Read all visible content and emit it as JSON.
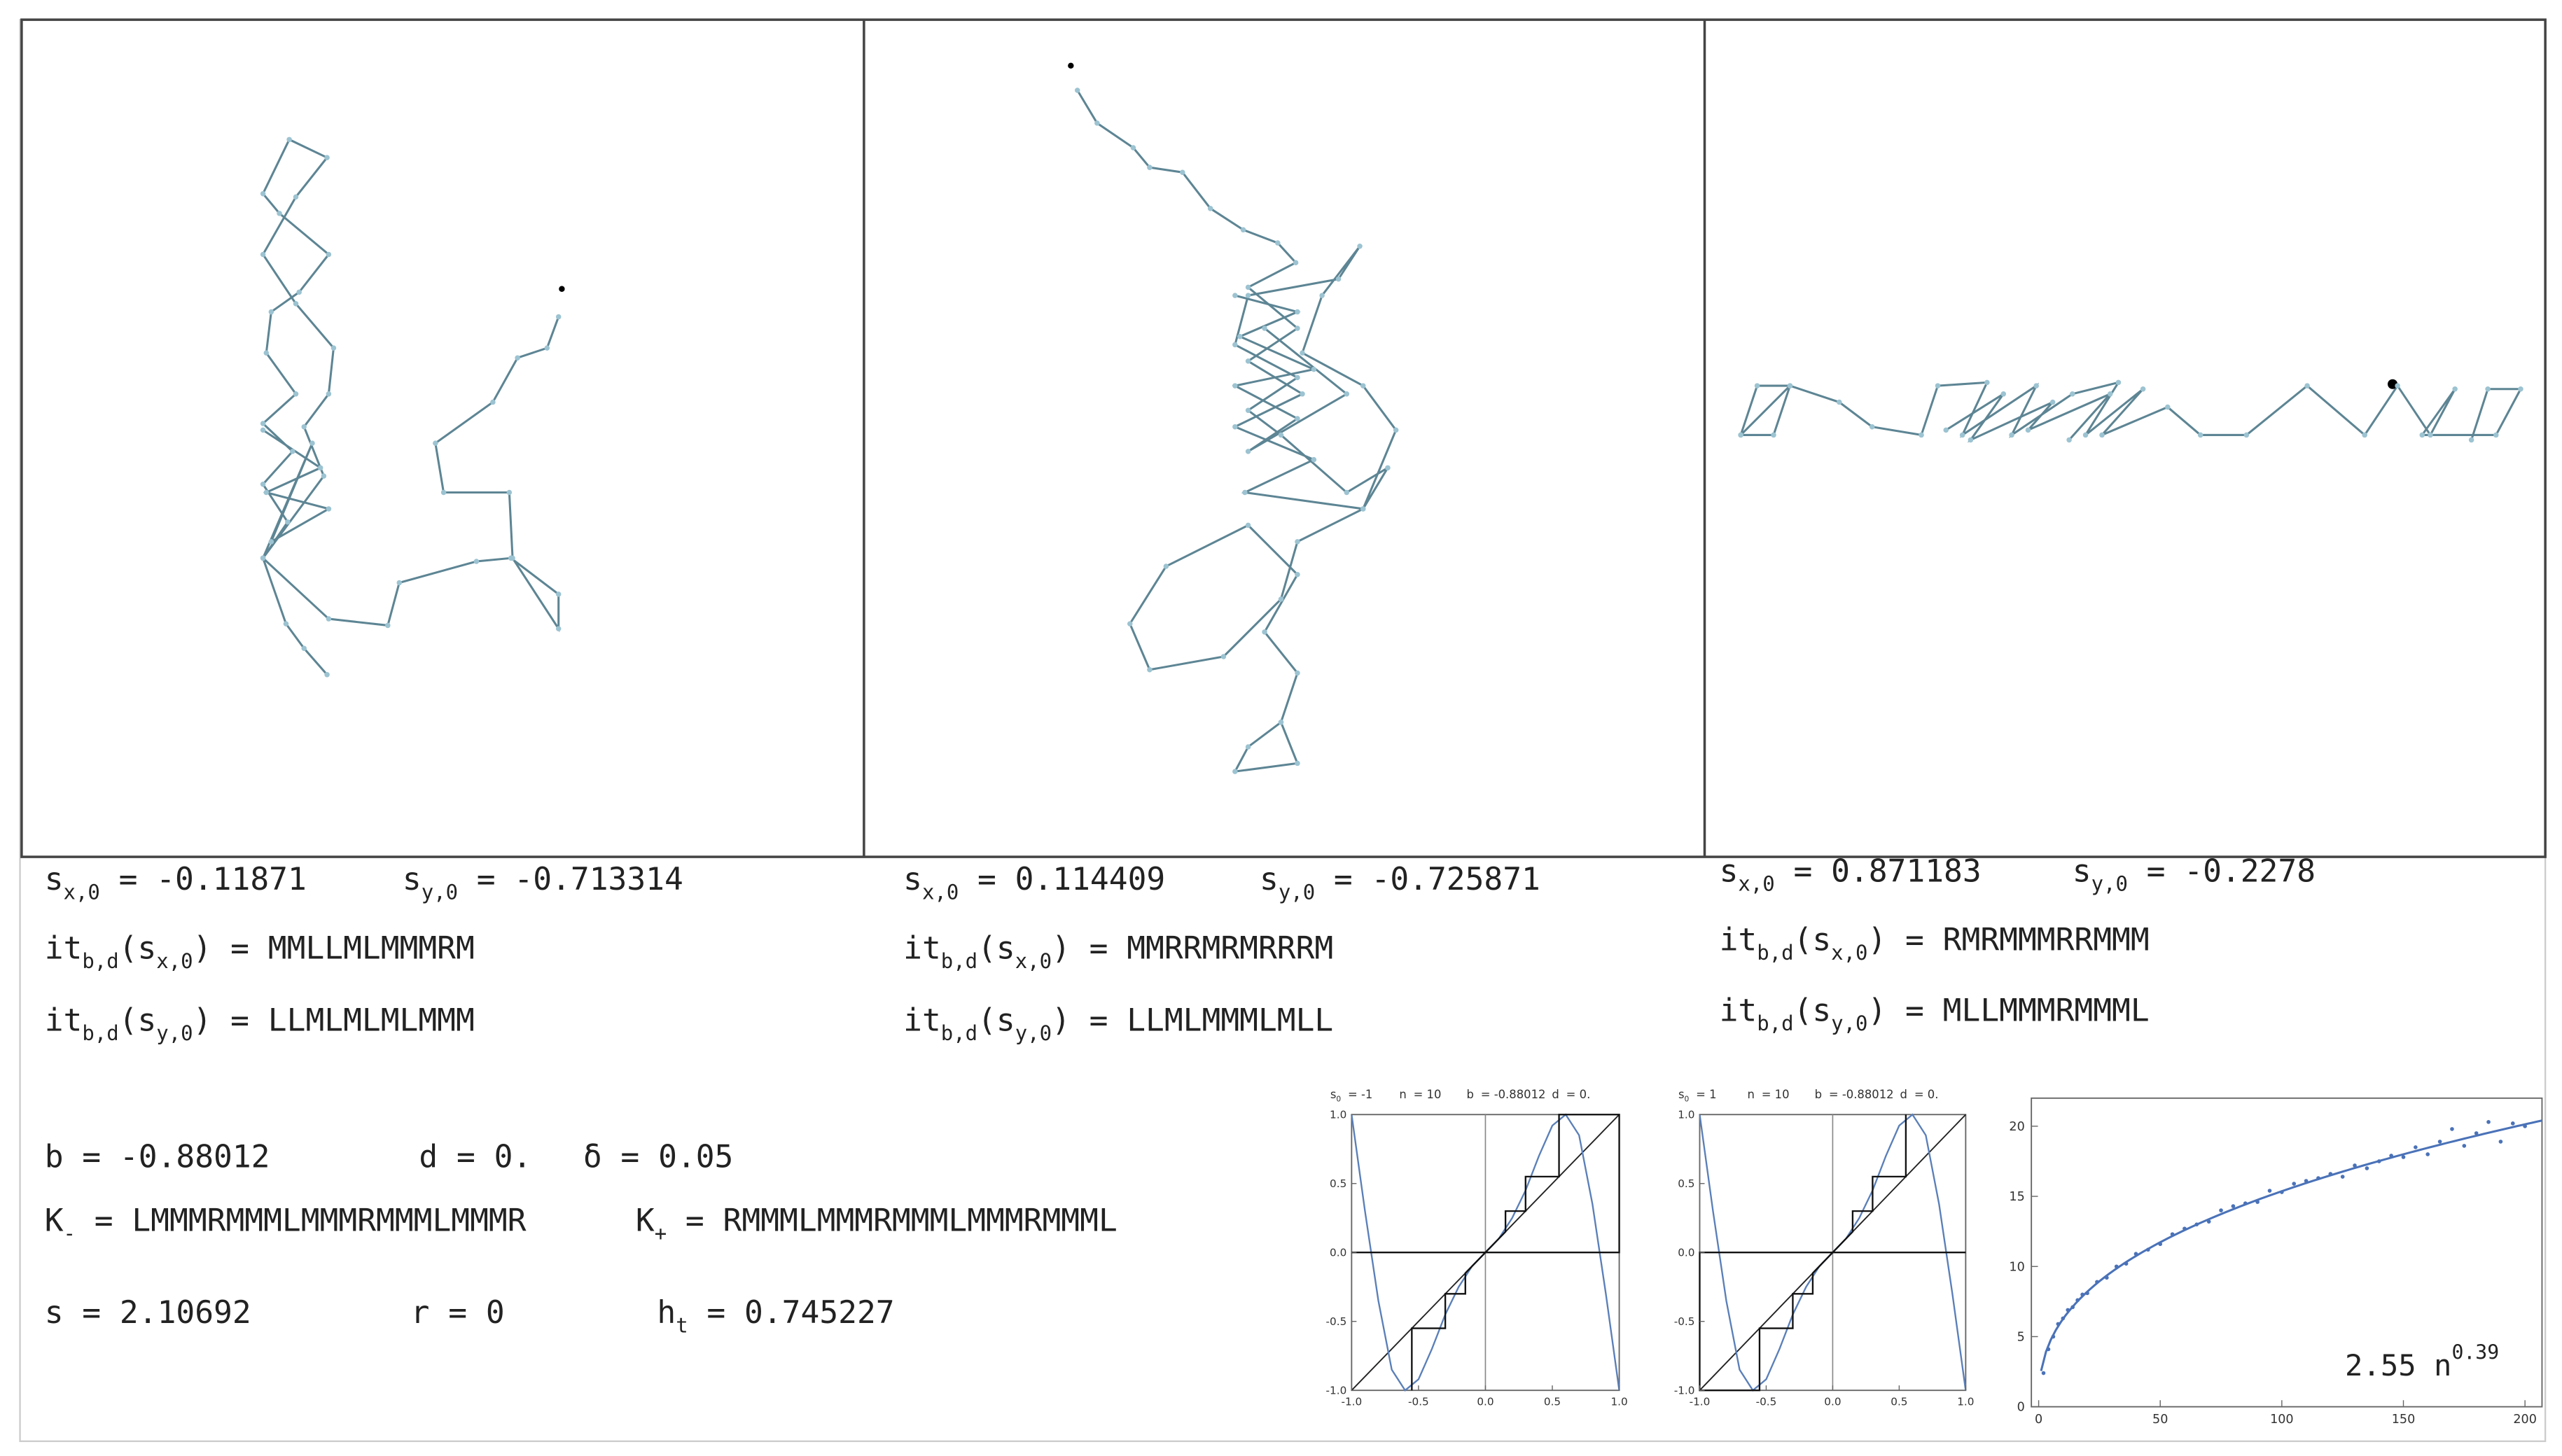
{
  "panels": [
    {
      "lines": [
        [
          {
            "lhs": [
              {
                "t": "s"
              },
              {
                "sub": "x,0"
              }
            ],
            "rhs": "= -0.11871"
          },
          {
            "lhs": [
              {
                "t": "s"
              },
              {
                "sub": "y,0"
              }
            ],
            "rhs": "= -0.713314"
          }
        ],
        [
          {
            "lhs": [
              {
                "t": "it"
              },
              {
                "sub": "b,d"
              },
              {
                "t": "(s"
              },
              {
                "sub": "x,0"
              },
              {
                "t": ")"
              }
            ],
            "rhs": "= MMLLMLMMMRM"
          }
        ],
        [
          {
            "lhs": [
              {
                "t": "it"
              },
              {
                "sub": "b,d"
              },
              {
                "t": "(s"
              },
              {
                "sub": "y,0"
              },
              {
                "t": ")"
              }
            ],
            "rhs": "= LLMLMLMLMMM"
          }
        ]
      ]
    },
    {
      "lines": [
        [
          {
            "lhs": [
              {
                "t": "s"
              },
              {
                "sub": "x,0"
              }
            ],
            "rhs": "= 0.114409"
          },
          {
            "lhs": [
              {
                "t": "s"
              },
              {
                "sub": "y,0"
              }
            ],
            "rhs": "= -0.725871"
          }
        ],
        [
          {
            "lhs": [
              {
                "t": "it"
              },
              {
                "sub": "b,d"
              },
              {
                "t": "(s"
              },
              {
                "sub": "x,0"
              },
              {
                "t": ")"
              }
            ],
            "rhs": "= MMRRMRMRRRM"
          }
        ],
        [
          {
            "lhs": [
              {
                "t": "it"
              },
              {
                "sub": "b,d"
              },
              {
                "t": "(s"
              },
              {
                "sub": "y,0"
              },
              {
                "t": ")"
              }
            ],
            "rhs": "= LLMLMMMLMLL"
          }
        ]
      ]
    },
    {
      "lines": [
        [
          {
            "lhs": [
              {
                "t": "s"
              },
              {
                "sub": "x,0"
              }
            ],
            "rhs": "= 0.871183"
          },
          {
            "lhs": [
              {
                "t": "s"
              },
              {
                "sub": "y,0"
              }
            ],
            "rhs": "= -0.2278"
          }
        ],
        [
          {
            "lhs": [
              {
                "t": "it"
              },
              {
                "sub": "b,d"
              },
              {
                "t": "(s"
              },
              {
                "sub": "x,0"
              },
              {
                "t": ")"
              }
            ],
            "rhs": "= RMRMMMRRMMM"
          }
        ],
        [
          {
            "lhs": [
              {
                "t": "it"
              },
              {
                "sub": "b,d"
              },
              {
                "t": "(s"
              },
              {
                "sub": "y,0"
              },
              {
                "t": ")"
              }
            ],
            "rhs": "= MLLMMMRMMML"
          }
        ]
      ]
    }
  ],
  "params": {
    "lines": [
      [
        {
          "lhs": [
            {
              "t": "b"
            }
          ],
          "rhs": "= -0.88012"
        },
        {
          "lhs": [
            {
              "t": "d"
            }
          ],
          "rhs": "= 0."
        },
        {
          "lhs": [
            {
              "t": "δ"
            }
          ],
          "rhs": "= 0.05"
        }
      ],
      [
        {
          "lhs": [
            {
              "t": "K"
            },
            {
              "sub": "-"
            }
          ],
          "rhs": "= LMMMRMMMLMMMRMMMLMMMR"
        },
        {
          "lhs": [
            {
              "t": "K"
            },
            {
              "sub": "+"
            }
          ],
          "rhs": "= RMMMLMMMRMMMLMMMRMMML"
        }
      ],
      [
        {
          "lhs": [
            {
              "t": "s"
            }
          ],
          "rhs": "= 2.10692"
        },
        {
          "lhs": [
            {
              "t": "r"
            }
          ],
          "rhs": "= 0"
        },
        {
          "lhs": [
            {
              "t": "h"
            },
            {
              "sub": "t"
            }
          ],
          "rhs": "= 0.745227"
        }
      ]
    ]
  },
  "cobwebs": [
    {
      "title": [
        {
          "lhs": [
            {
              "t": "s"
            },
            {
              "sub": "0"
            }
          ],
          "rhs": "= -1"
        },
        {
          "lhs": [
            {
              "t": "n"
            }
          ],
          "rhs": "= 10"
        },
        {
          "lhs": [
            {
              "t": "b"
            }
          ],
          "rhs": "= -0.88012"
        },
        {
          "lhs": [
            {
              "t": "d"
            }
          ],
          "rhs": "= 0."
        }
      ],
      "xlim": [
        -1,
        1
      ],
      "ylim": [
        -1,
        1
      ],
      "xticks": [
        {
          "value": -1,
          "label": "-1.0"
        },
        {
          "value": -0.5,
          "label": "-0.5"
        },
        {
          "value": 0,
          "label": "0.0"
        },
        {
          "value": 0.5,
          "label": "0.5"
        },
        {
          "value": 1,
          "label": "1.0"
        }
      ],
      "yticks": [
        {
          "value": -1,
          "label": "-1.0"
        },
        {
          "value": -0.5,
          "label": "-0.5"
        },
        {
          "value": 0,
          "label": "0.0"
        },
        {
          "value": 0.5,
          "label": "0.5"
        },
        {
          "value": 1,
          "label": "1.0"
        }
      ]
    },
    {
      "title": [
        {
          "lhs": [
            {
              "t": "s"
            },
            {
              "sub": "0"
            }
          ],
          "rhs": "= 1"
        },
        {
          "lhs": [
            {
              "t": "n"
            }
          ],
          "rhs": "= 10"
        },
        {
          "lhs": [
            {
              "t": "b"
            }
          ],
          "rhs": "= -0.88012"
        },
        {
          "lhs": [
            {
              "t": "d"
            }
          ],
          "rhs": "= 0."
        }
      ],
      "xlim": [
        -1,
        1
      ],
      "ylim": [
        -1,
        1
      ],
      "xticks": [
        {
          "value": -1,
          "label": "-1.0"
        },
        {
          "value": -0.5,
          "label": "-0.5"
        },
        {
          "value": 0,
          "label": "0.0"
        },
        {
          "value": 0.5,
          "label": "0.5"
        },
        {
          "value": 1,
          "label": "1.0"
        }
      ],
      "yticks": [
        {
          "value": -1,
          "label": "-1.0"
        },
        {
          "value": -0.5,
          "label": "-0.5"
        },
        {
          "value": 0,
          "label": "0.0"
        },
        {
          "value": 0.5,
          "label": "0.5"
        },
        {
          "value": 1,
          "label": "1.0"
        }
      ]
    }
  ],
  "scatter": {
    "type": "scatter",
    "xlim": [
      -3,
      207
    ],
    "ylim": [
      0,
      22
    ],
    "xticks": [
      0,
      50,
      100,
      150,
      200
    ],
    "yticks": [
      0,
      5,
      10,
      15,
      20
    ],
    "color": "#4a72b8",
    "x": [
      2,
      4,
      6,
      8,
      10,
      12,
      14,
      16,
      18,
      20,
      24,
      28,
      32,
      36,
      40,
      45,
      50,
      55,
      60,
      65,
      70,
      75,
      80,
      85,
      90,
      95,
      100,
      105,
      110,
      115,
      120,
      125,
      130,
      135,
      140,
      145,
      150,
      155,
      160,
      165,
      170,
      175,
      180,
      185,
      190,
      195,
      200
    ],
    "y": [
      2.4,
      4.1,
      5.0,
      5.9,
      6.3,
      6.9,
      7.1,
      7.6,
      8.0,
      8.1,
      8.9,
      9.2,
      10.0,
      10.2,
      10.9,
      11.2,
      11.6,
      12.3,
      12.7,
      13.0,
      13.2,
      14.0,
      14.3,
      14.5,
      14.6,
      15.4,
      15.3,
      15.9,
      16.1,
      16.3,
      16.6,
      16.4,
      17.2,
      17.0,
      17.5,
      17.9,
      17.8,
      18.5,
      18.0,
      18.9,
      19.8,
      18.6,
      19.5,
      20.3,
      18.9,
      20.2,
      20.0
    ],
    "fit": {
      "a": 2.55,
      "p": 0.39,
      "label": "2.55 n",
      "exp_label": "0.39"
    }
  }
}
